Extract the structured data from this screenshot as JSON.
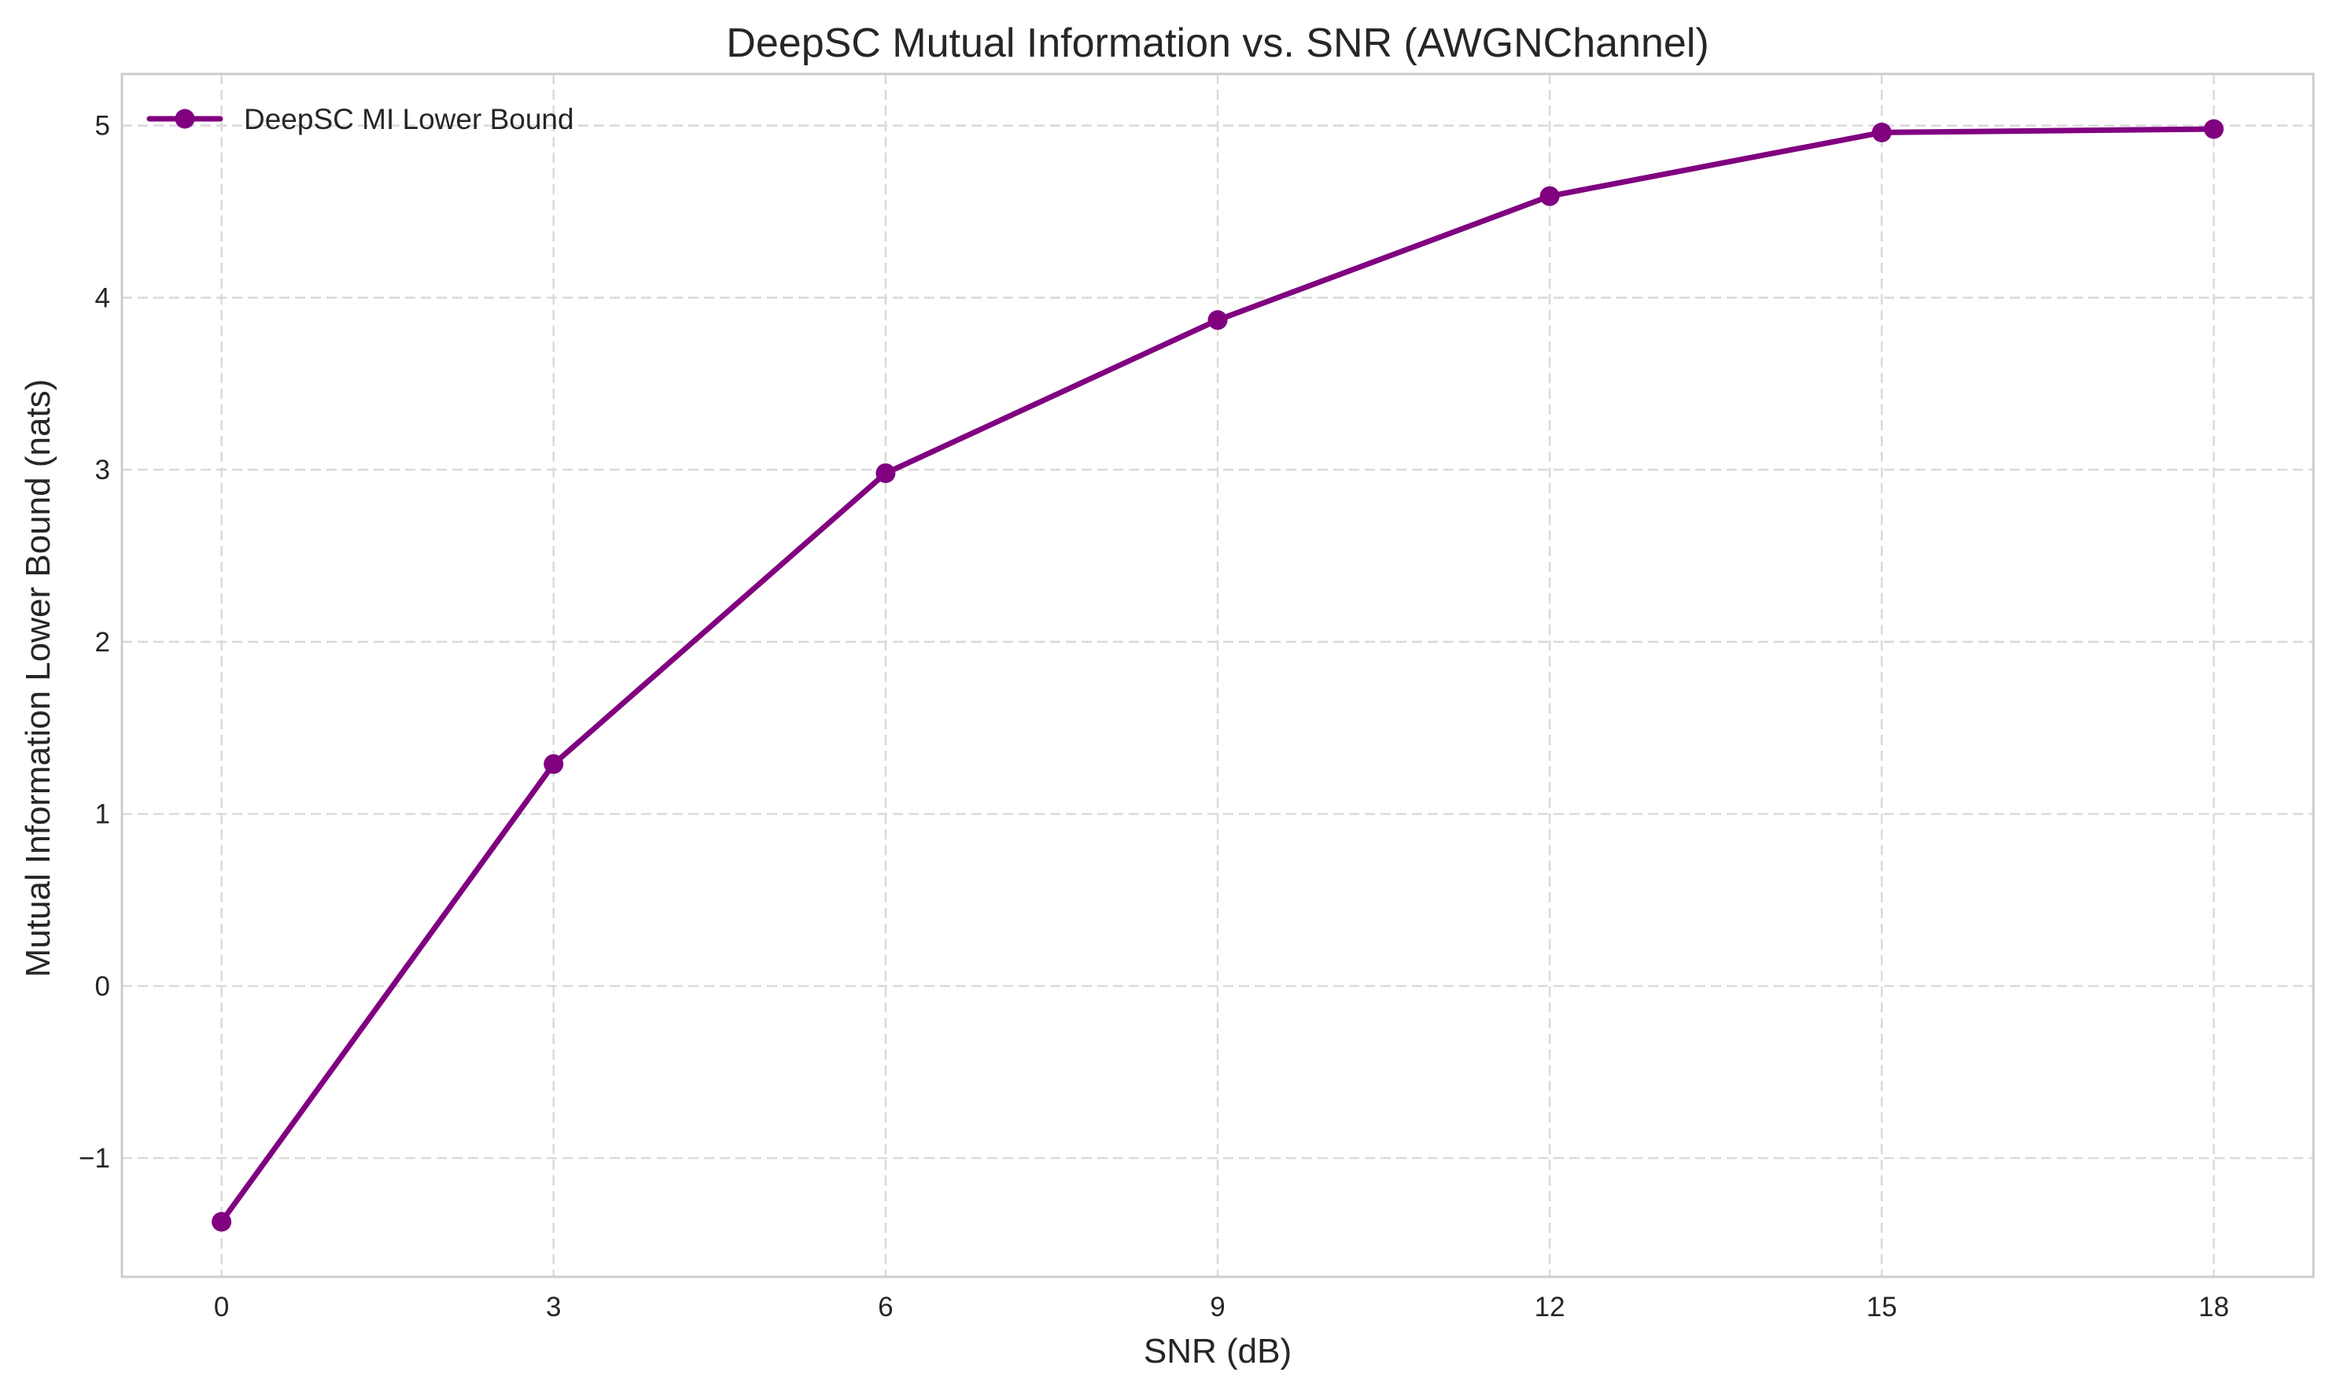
{
  "chart_data": {
    "type": "line",
    "title": "DeepSC Mutual Information vs. SNR (AWGNChannel)",
    "xlabel": "SNR (dB)",
    "ylabel": "Mutual Information Lower Bound (nats)",
    "x": [
      0,
      3,
      6,
      9,
      12,
      15,
      18
    ],
    "xlim": [
      -0.9,
      18.9
    ],
    "ylim": [
      -1.69,
      5.3
    ],
    "x_ticks": [
      0,
      3,
      6,
      9,
      12,
      15,
      18
    ],
    "x_tick_labels": [
      "0",
      "3",
      "6",
      "9",
      "12",
      "15",
      "18"
    ],
    "y_ticks": [
      -1,
      0,
      1,
      2,
      3,
      4,
      5
    ],
    "y_tick_labels": [
      "−1",
      "0",
      "1",
      "2",
      "3",
      "4",
      "5"
    ],
    "grid": true,
    "legend_position": "top-left",
    "series": [
      {
        "name": "DeepSC MI Lower Bound",
        "color": "#800080",
        "marker": "circle",
        "values": [
          -1.37,
          1.29,
          2.98,
          3.87,
          4.59,
          4.96,
          4.98
        ]
      }
    ]
  }
}
